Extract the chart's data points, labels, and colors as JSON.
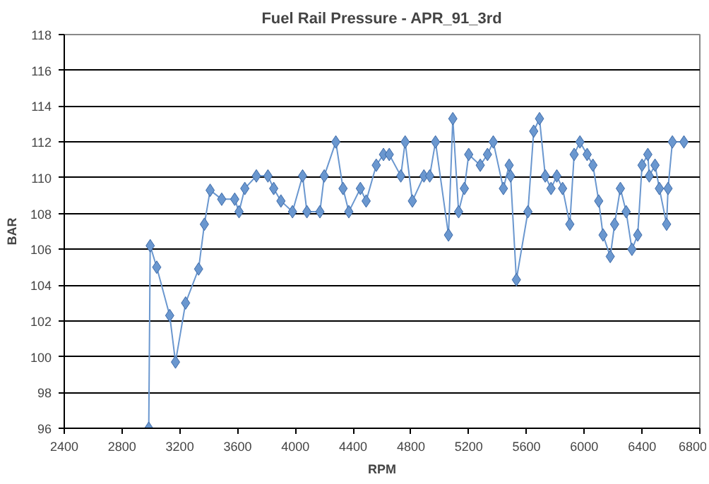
{
  "chart_data": {
    "type": "line",
    "title": "Fuel Rail Pressure - APR_91_3rd",
    "xlabel": "RPM",
    "ylabel": "BAR",
    "xlim": [
      2400,
      6800
    ],
    "xticks": [
      2400,
      2800,
      3200,
      3600,
      4000,
      4400,
      4800,
      5200,
      5600,
      6000,
      6400,
      6800
    ],
    "ylim": [
      96,
      118
    ],
    "yticks": [
      96,
      98,
      100,
      102,
      104,
      106,
      108,
      110,
      112,
      114,
      116,
      118
    ],
    "grid": "y",
    "marker": "diamond",
    "line_style": "solid",
    "series": [
      {
        "color": "#6a97cf",
        "x": [
          2985,
          2995,
          3040,
          3130,
          3170,
          3240,
          3330,
          3370,
          3410,
          3490,
          3580,
          3610,
          3650,
          3730,
          3810,
          3850,
          3900,
          3980,
          4050,
          4080,
          4170,
          4200,
          4280,
          4330,
          4370,
          4450,
          4490,
          4560,
          4610,
          4650,
          4730,
          4760,
          4810,
          4890,
          4930,
          4970,
          5060,
          5090,
          5130,
          5170,
          5200,
          5280,
          5330,
          5370,
          5440,
          5480,
          5490,
          5530,
          5610,
          5650,
          5690,
          5730,
          5770,
          5810,
          5850,
          5900,
          5930,
          5970,
          6020,
          6060,
          6100,
          6130,
          6180,
          6210,
          6250,
          6290,
          6330,
          6370,
          6400,
          6440,
          6450,
          6490,
          6520,
          6570,
          6580,
          6610,
          6690
        ],
        "values": [
          96,
          106.2,
          105,
          102.3,
          99.7,
          103,
          104.9,
          107.4,
          109.3,
          108.8,
          108.8,
          108.1,
          109.4,
          110.1,
          110.1,
          109.4,
          108.7,
          108.1,
          110.1,
          108.1,
          108.1,
          110.1,
          112,
          109.4,
          108.1,
          109.4,
          108.7,
          110.7,
          111.3,
          111.3,
          110.1,
          112,
          108.7,
          110.1,
          110.1,
          112,
          106.8,
          113.3,
          108.1,
          109.4,
          111.3,
          110.7,
          111.3,
          112,
          109.4,
          110.7,
          110.1,
          104.3,
          108.1,
          112.6,
          113.3,
          110.1,
          109.4,
          110.1,
          109.4,
          107.4,
          111.3,
          112,
          111.3,
          110.7,
          108.7,
          106.8,
          105.6,
          107.4,
          109.4,
          108.1,
          106,
          106.8,
          110.7,
          111.3,
          110.1,
          110.7,
          109.4,
          107.4,
          109.4,
          112,
          112
        ]
      }
    ]
  }
}
